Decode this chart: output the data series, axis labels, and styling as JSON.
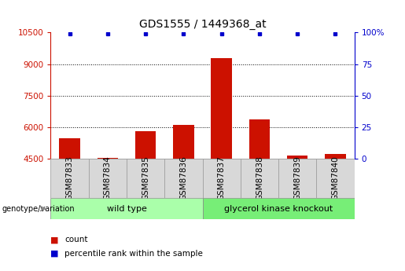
{
  "title": "GDS1555 / 1449368_at",
  "samples": [
    "GSM87833",
    "GSM87834",
    "GSM87835",
    "GSM87836",
    "GSM87837",
    "GSM87838",
    "GSM87839",
    "GSM87840"
  ],
  "counts": [
    5450,
    4530,
    5800,
    6100,
    9280,
    6350,
    4650,
    4720
  ],
  "percentile_values": [
    99,
    99,
    99,
    99,
    99,
    99,
    99,
    99
  ],
  "ymin": 4500,
  "ymax": 10500,
  "yticks_left": [
    4500,
    6000,
    7500,
    9000,
    10500
  ],
  "yticks_right": [
    0,
    25,
    50,
    75,
    100
  ],
  "ytick_right_labels": [
    "0",
    "25",
    "50",
    "75",
    "100%"
  ],
  "bar_color": "#cc1100",
  "dot_color": "#0000cc",
  "wt_color": "#aaffaa",
  "gk_color": "#77ee77",
  "gray_box_color": "#d8d8d8",
  "group_label": "genotype/variation",
  "legend_count_label": "count",
  "legend_percentile_label": "percentile rank within the sample",
  "left_axis_color": "#cc1100",
  "right_axis_color": "#0000cc",
  "grid_yticks": [
    6000,
    7500,
    9000
  ],
  "tick_label_fontsize": 7.5,
  "title_fontsize": 10
}
